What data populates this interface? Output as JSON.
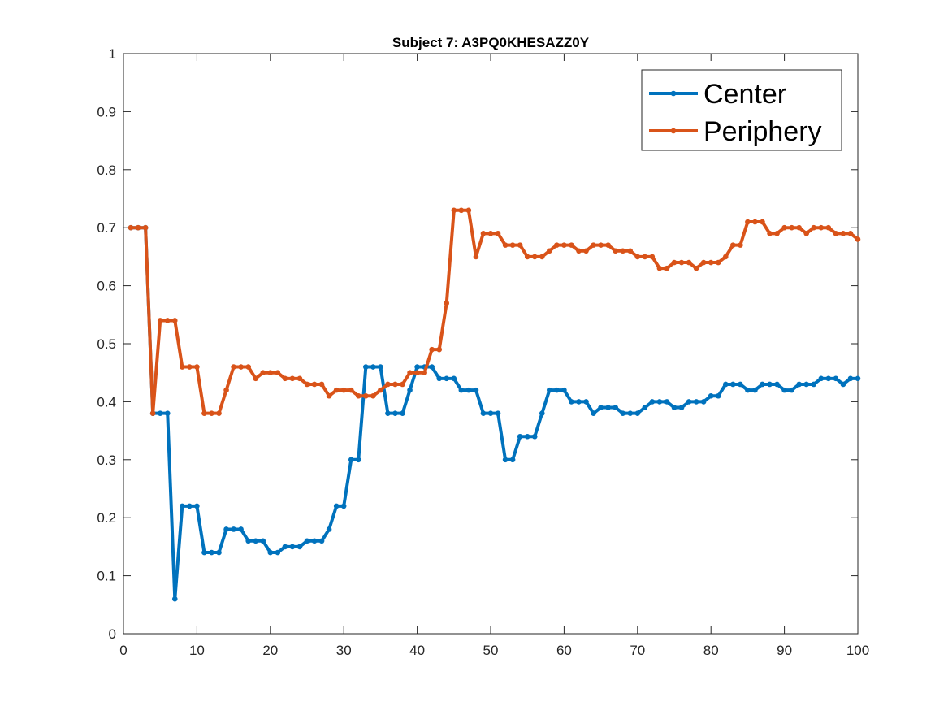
{
  "chart_data": {
    "type": "line",
    "title": "Subject 7: A3PQ0KHESAZZ0Y",
    "xlabel": "",
    "ylabel": "",
    "xlim": [
      0,
      100
    ],
    "ylim": [
      0,
      1
    ],
    "xticks": [
      "0",
      "10",
      "20",
      "30",
      "40",
      "50",
      "60",
      "70",
      "80",
      "90",
      "100"
    ],
    "yticks": [
      "0",
      "0.1",
      "0.2",
      "0.3",
      "0.4",
      "0.5",
      "0.6",
      "0.7",
      "0.8",
      "0.9",
      "1"
    ],
    "grid": false,
    "legend_position": "top-right",
    "x": [
      1,
      2,
      3,
      4,
      5,
      6,
      7,
      8,
      9,
      10,
      11,
      12,
      13,
      14,
      15,
      16,
      17,
      18,
      19,
      20,
      21,
      22,
      23,
      24,
      25,
      26,
      27,
      28,
      29,
      30,
      31,
      32,
      33,
      34,
      35,
      36,
      37,
      38,
      39,
      40,
      41,
      42,
      43,
      44,
      45,
      46,
      47,
      48,
      49,
      50,
      51,
      52,
      53,
      54,
      55,
      56,
      57,
      58,
      59,
      60,
      61,
      62,
      63,
      64,
      65,
      66,
      67,
      68,
      69,
      70,
      71,
      72,
      73,
      74,
      75,
      76,
      77,
      78,
      79,
      80,
      81,
      82,
      83,
      84,
      85,
      86,
      87,
      88,
      89,
      90,
      91,
      92,
      93,
      94,
      95,
      96,
      97,
      98,
      99,
      100
    ],
    "series": [
      {
        "name": "Center",
        "color": "#0072bd",
        "values": [
          0.7,
          0.7,
          0.7,
          0.38,
          0.38,
          0.38,
          0.06,
          0.22,
          0.22,
          0.22,
          0.14,
          0.14,
          0.14,
          0.18,
          0.18,
          0.18,
          0.16,
          0.16,
          0.16,
          0.14,
          0.14,
          0.15,
          0.15,
          0.15,
          0.16,
          0.16,
          0.16,
          0.18,
          0.22,
          0.22,
          0.3,
          0.3,
          0.46,
          0.46,
          0.46,
          0.38,
          0.38,
          0.38,
          0.42,
          0.46,
          0.46,
          0.46,
          0.44,
          0.44,
          0.44,
          0.42,
          0.42,
          0.42,
          0.38,
          0.38,
          0.38,
          0.3,
          0.3,
          0.34,
          0.34,
          0.34,
          0.38,
          0.42,
          0.42,
          0.42,
          0.4,
          0.4,
          0.4,
          0.38,
          0.39,
          0.39,
          0.39,
          0.38,
          0.38,
          0.38,
          0.39,
          0.4,
          0.4,
          0.4,
          0.39,
          0.39,
          0.4,
          0.4,
          0.4,
          0.41,
          0.41,
          0.43,
          0.43,
          0.43,
          0.42,
          0.42,
          0.43,
          0.43,
          0.43,
          0.42,
          0.42,
          0.43,
          0.43,
          0.43,
          0.44,
          0.44,
          0.44,
          0.43,
          0.44,
          0.44
        ]
      },
      {
        "name": "Periphery",
        "color": "#d95319",
        "values": [
          0.7,
          0.7,
          0.7,
          0.38,
          0.54,
          0.54,
          0.54,
          0.46,
          0.46,
          0.46,
          0.38,
          0.38,
          0.38,
          0.42,
          0.46,
          0.46,
          0.46,
          0.44,
          0.45,
          0.45,
          0.45,
          0.44,
          0.44,
          0.44,
          0.43,
          0.43,
          0.43,
          0.41,
          0.42,
          0.42,
          0.42,
          0.41,
          0.41,
          0.41,
          0.42,
          0.43,
          0.43,
          0.43,
          0.45,
          0.45,
          0.45,
          0.49,
          0.49,
          0.57,
          0.73,
          0.73,
          0.73,
          0.65,
          0.69,
          0.69,
          0.69,
          0.67,
          0.67,
          0.67,
          0.65,
          0.65,
          0.65,
          0.66,
          0.67,
          0.67,
          0.67,
          0.66,
          0.66,
          0.67,
          0.67,
          0.67,
          0.66,
          0.66,
          0.66,
          0.65,
          0.65,
          0.65,
          0.63,
          0.63,
          0.64,
          0.64,
          0.64,
          0.63,
          0.64,
          0.64,
          0.64,
          0.65,
          0.67,
          0.67,
          0.71,
          0.71,
          0.71,
          0.69,
          0.69,
          0.7,
          0.7,
          0.7,
          0.69,
          0.7,
          0.7,
          0.7,
          0.69,
          0.69,
          0.69,
          0.68
        ]
      }
    ]
  }
}
